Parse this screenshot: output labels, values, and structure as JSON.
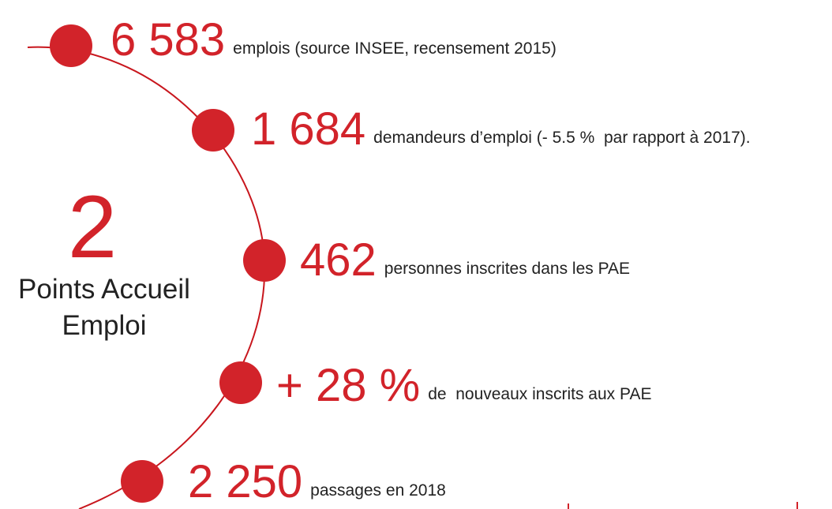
{
  "center": {
    "number": "2",
    "label_line1": "Points Accueil",
    "label_line2": "Emploi"
  },
  "items": [
    {
      "number": "6 583",
      "text": "emplois (source INSEE, recensement 2015)"
    },
    {
      "number": "1 684",
      "text": "demandeurs d’emploi (- 5.5 %  par rapport à 2017)."
    },
    {
      "number": "462",
      "text": "personnes inscrites dans les PAE"
    },
    {
      "number": "+ 28 %",
      "text": "de  nouveaux inscrits aux PAE"
    },
    {
      "number": "2 250",
      "text": "passages en 2018"
    }
  ]
}
